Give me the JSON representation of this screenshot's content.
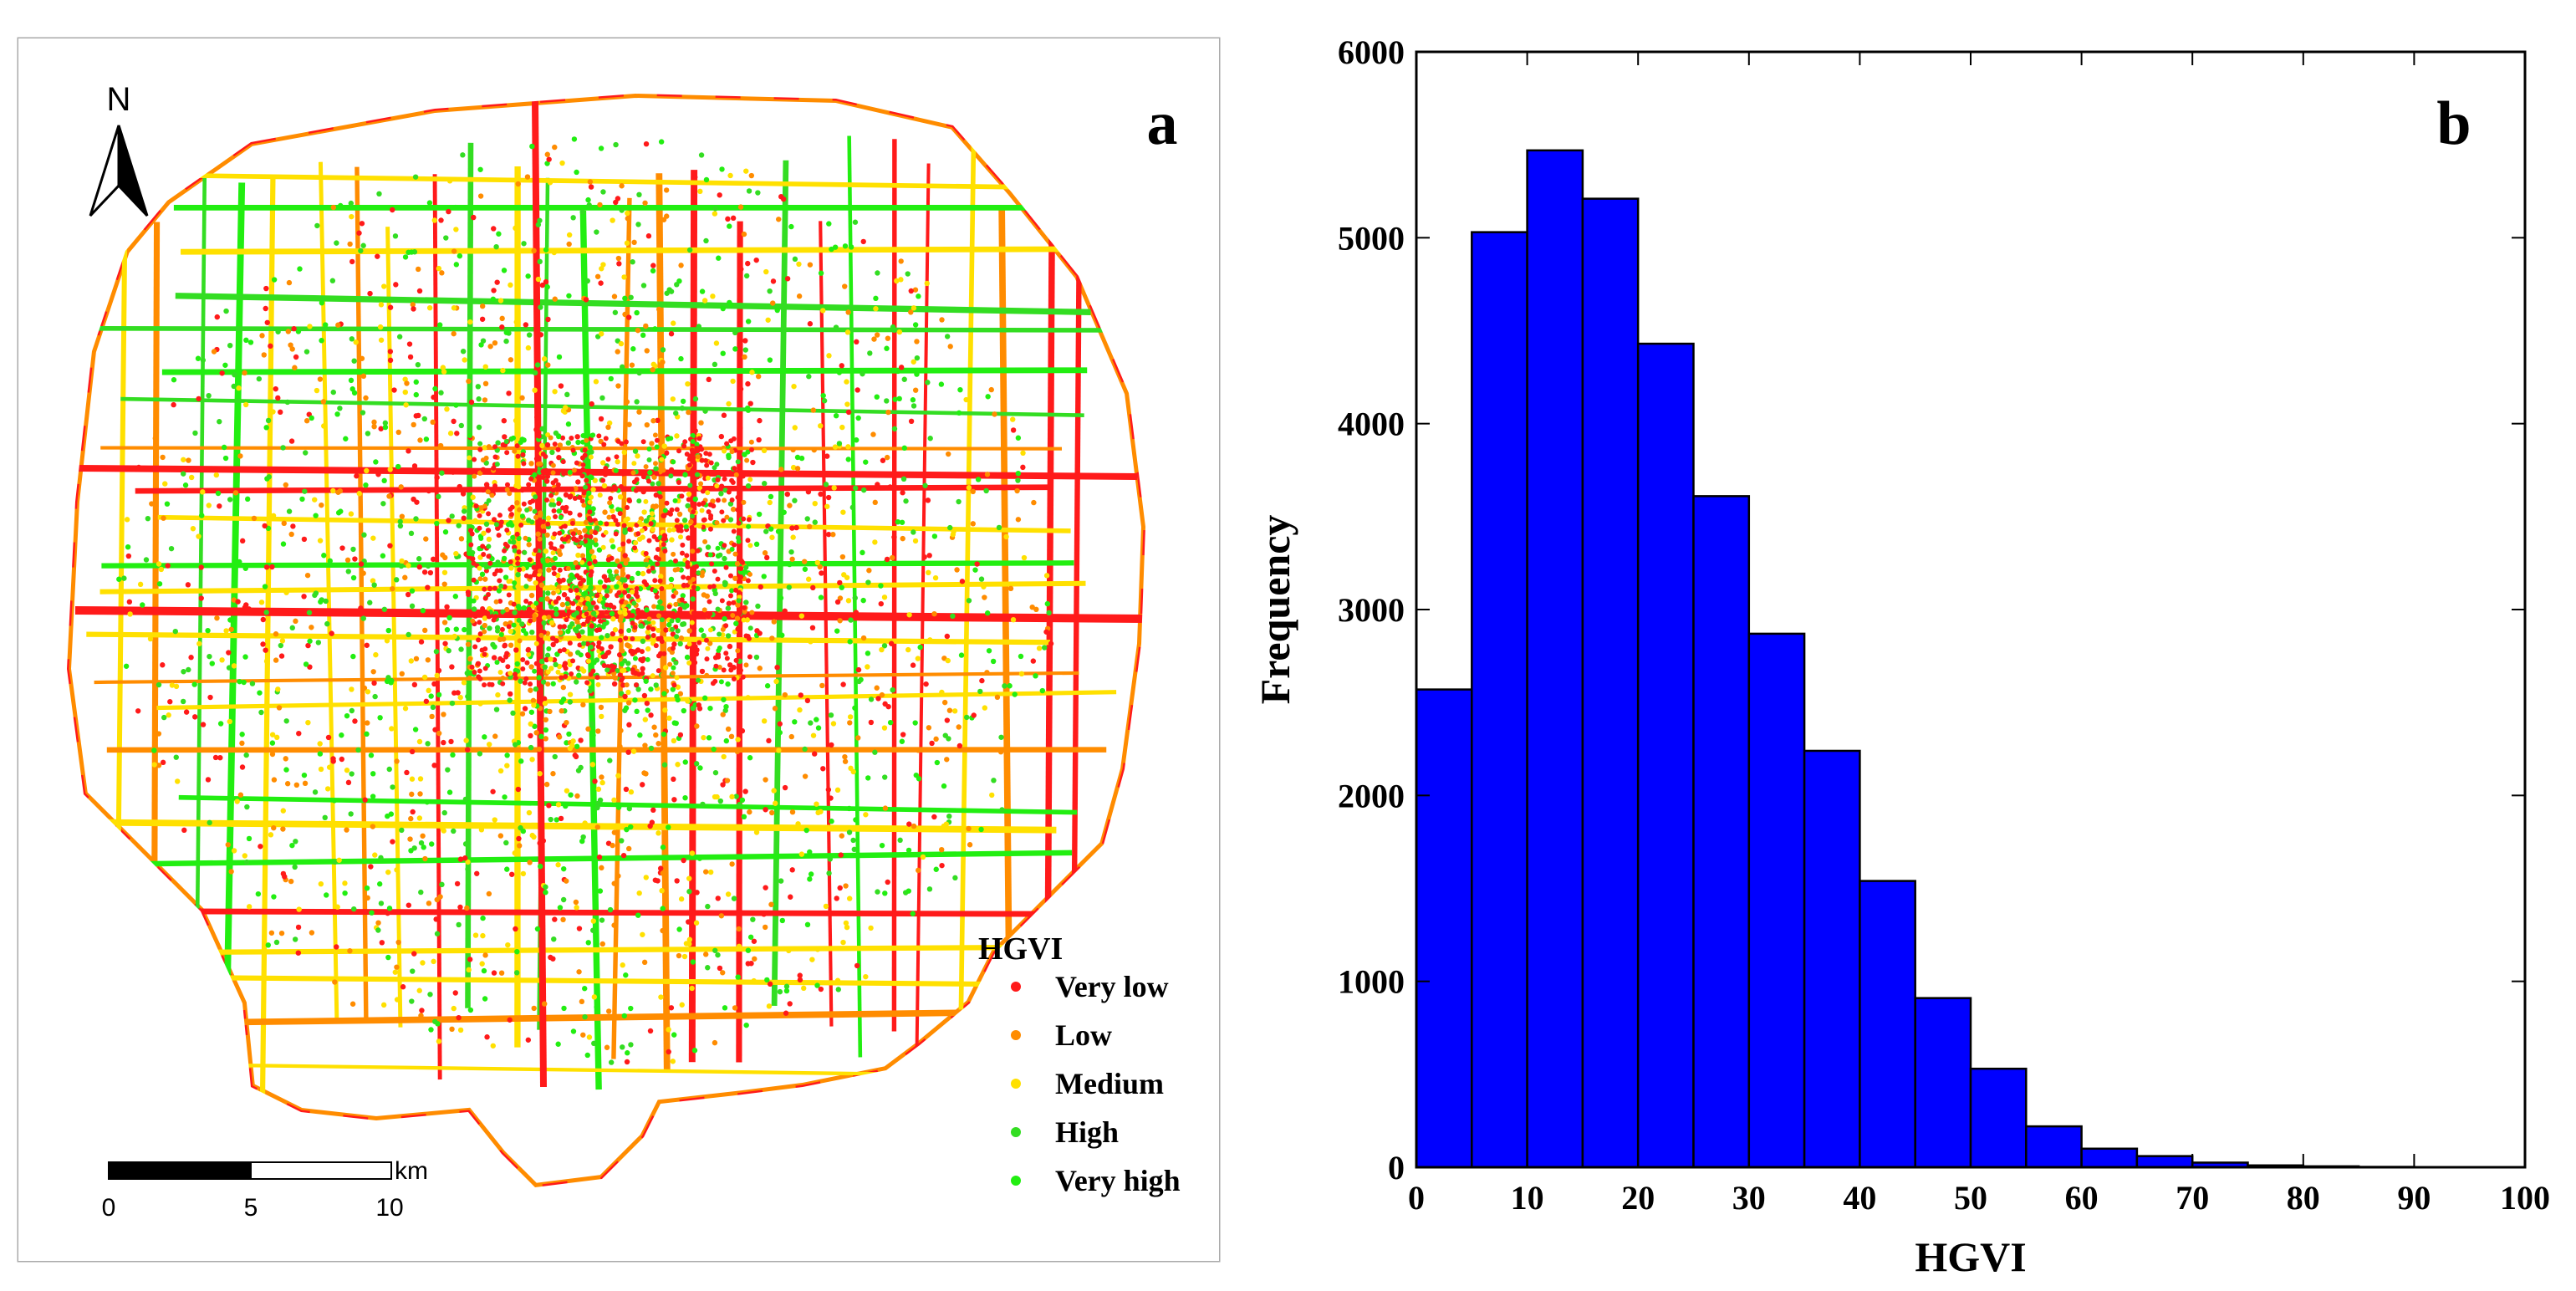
{
  "colors": {
    "very_low": "#ff1a1a",
    "low": "#ff8c00",
    "medium": "#ffe000",
    "high": "#33dd22",
    "very_high": "#22ee11",
    "bar_fill": "#0000ff",
    "bar_stroke": "#000000",
    "frame": "#aaaaaa"
  },
  "map": {
    "panel_letter": "a",
    "north_label": "N",
    "legend": {
      "title": "HGVI",
      "items": [
        {
          "label": "Very low",
          "color_key": "very_low"
        },
        {
          "label": "Low",
          "color_key": "low"
        },
        {
          "label": "Medium",
          "color_key": "medium"
        },
        {
          "label": "High",
          "color_key": "high"
        },
        {
          "label": "Very high",
          "color_key": "very_high"
        }
      ]
    },
    "scale_bar": {
      "unit": "km",
      "ticks": [
        "0",
        "5",
        "10"
      ]
    }
  },
  "chart_data": {
    "type": "bar",
    "panel_letter": "b",
    "title": "",
    "xlabel": "HGVI",
    "ylabel": "Frequency",
    "bin_edges": [
      0,
      5,
      10,
      15,
      20,
      25,
      30,
      35,
      40,
      45,
      50,
      55,
      60,
      65,
      70,
      75,
      80,
      85,
      90,
      95,
      100
    ],
    "values": [
      2570,
      5030,
      5470,
      5210,
      4430,
      3610,
      2870,
      2240,
      1540,
      910,
      530,
      220,
      100,
      60,
      25,
      10,
      5,
      2,
      1,
      0
    ],
    "xlim": [
      0,
      100
    ],
    "ylim": [
      0,
      6000
    ],
    "xticks": [
      0,
      10,
      20,
      30,
      40,
      50,
      60,
      70,
      80,
      90,
      100
    ],
    "yticks": [
      0,
      1000,
      2000,
      3000,
      4000,
      5000,
      6000
    ],
    "grid": false,
    "legend": "none"
  }
}
